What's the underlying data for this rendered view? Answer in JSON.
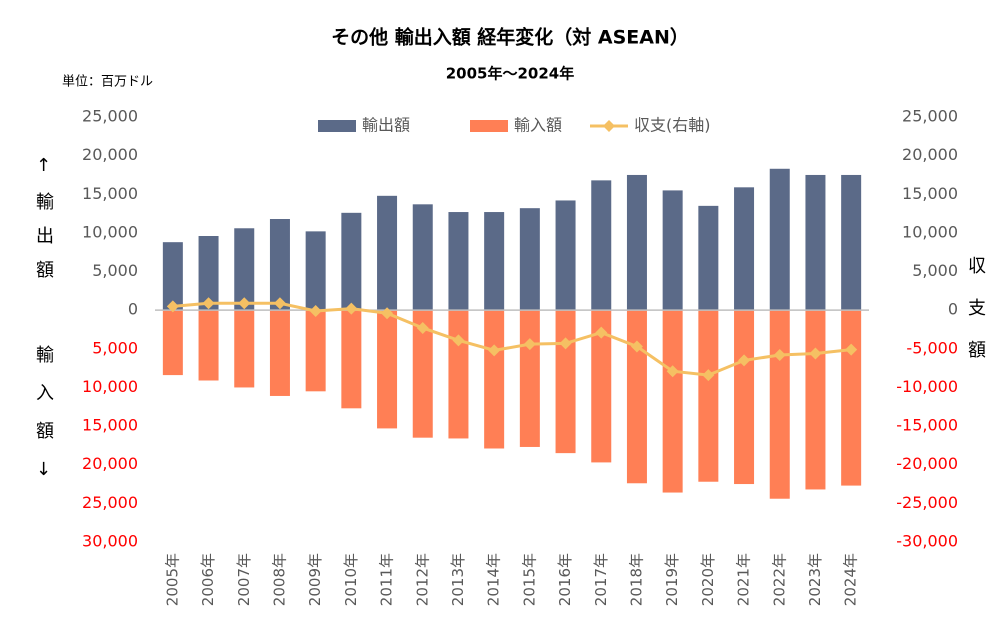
{
  "chart_data": {
    "type": "bar_line",
    "title": "その他 輸出入額 経年変化（対 ASEAN）",
    "subtitle": "2005年～2024年",
    "unit_label": "単位：百万ドル",
    "y_label_top": "↑輸出額",
    "y_label_bottom": "輸入額↓",
    "y2_label": "収支額",
    "categories": [
      "2005年",
      "2006年",
      "2007年",
      "2008年",
      "2009年",
      "2010年",
      "2011年",
      "2012年",
      "2013年",
      "2014年",
      "2015年",
      "2016年",
      "2017年",
      "2018年",
      "2019年",
      "2020年",
      "2021年",
      "2022年",
      "2023年",
      "2024年"
    ],
    "series": [
      {
        "name": "輸出額",
        "color": "#5b6a88",
        "kind": "bar",
        "values": [
          8800,
          9600,
          10600,
          11800,
          10200,
          12600,
          14800,
          13700,
          12700,
          12700,
          13200,
          14200,
          16800,
          17500,
          15500,
          13500,
          15900,
          18300,
          17500,
          17500
        ]
      },
      {
        "name": "輸入額",
        "color": "#ff7f55",
        "kind": "bar",
        "values": [
          -8400,
          -9100,
          -10000,
          -11100,
          -10500,
          -12700,
          -15300,
          -16500,
          -16600,
          -17900,
          -17700,
          -18500,
          -19700,
          -22400,
          -23600,
          -22200,
          -22500,
          -24400,
          -23200,
          -22700
        ]
      },
      {
        "name": "収支(右軸)",
        "color": "#f5c063",
        "kind": "line",
        "axis": "y2",
        "values": [
          500,
          900,
          900,
          900,
          -100,
          200,
          -400,
          -2300,
          -3900,
          -5200,
          -4400,
          -4300,
          -2900,
          -4700,
          -7900,
          -8400,
          -6500,
          -5800,
          -5600,
          -5100
        ]
      }
    ],
    "ylim": [
      -30000,
      25000
    ],
    "yticks": [
      {
        "value": 25000,
        "label": "25,000"
      },
      {
        "value": 20000,
        "label": "20,000"
      },
      {
        "value": 15000,
        "label": "15,000"
      },
      {
        "value": 10000,
        "label": "10,000"
      },
      {
        "value": 5000,
        "label": "5,000"
      },
      0,
      {
        "value": -5000,
        "label": "5,000"
      },
      {
        "value": -10000,
        "label": "10,000"
      },
      {
        "value": -15000,
        "label": "15,000"
      },
      {
        "value": -20000,
        "label": "20,000"
      },
      {
        "value": -25000,
        "label": "25,000"
      },
      {
        "value": -30000,
        "label": "30,000"
      }
    ],
    "y2lim": [
      -30000,
      25000
    ],
    "y2ticks": [
      {
        "value": 25000,
        "label": "25,000"
      },
      {
        "value": 20000,
        "label": "20,000"
      },
      {
        "value": 15000,
        "label": "15,000"
      },
      {
        "value": 10000,
        "label": "10,000"
      },
      {
        "value": 5000,
        "label": "5,000"
      },
      0,
      {
        "value": -5000,
        "label": "-5,000"
      },
      {
        "value": -10000,
        "label": "-10,000"
      },
      {
        "value": -15000,
        "label": "-15,000"
      },
      {
        "value": -20000,
        "label": "-20,000"
      },
      {
        "value": -25000,
        "label": "-25,000"
      },
      {
        "value": -30000,
        "label": "-30,000"
      }
    ],
    "tick_color": "#595959",
    "negative_tick_color": "#ff0000",
    "legend": "top"
  }
}
